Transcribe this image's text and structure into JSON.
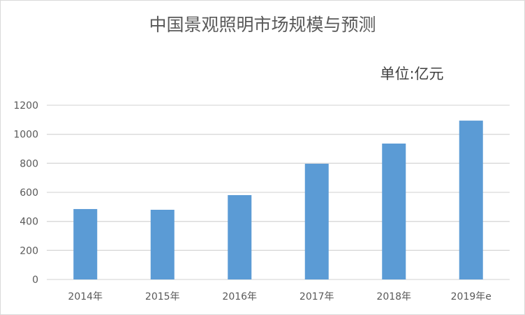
{
  "chart_data": {
    "type": "bar",
    "title": "中国景观照明市场规模与预测",
    "unit_label": "单位:亿元",
    "categories": [
      "2014年",
      "2015年",
      "2016年",
      "2017年",
      "2018年",
      "2019年e"
    ],
    "values": [
      485,
      480,
      581,
      797,
      936,
      1094
    ],
    "ylim": [
      0,
      1200
    ],
    "yticks": [
      0,
      200,
      400,
      600,
      800,
      1000,
      1200
    ],
    "grid": true,
    "legend": "none",
    "colors": {
      "bar": "#5b9bd5",
      "grid": "#d9d9d9",
      "text": "#595959"
    }
  }
}
